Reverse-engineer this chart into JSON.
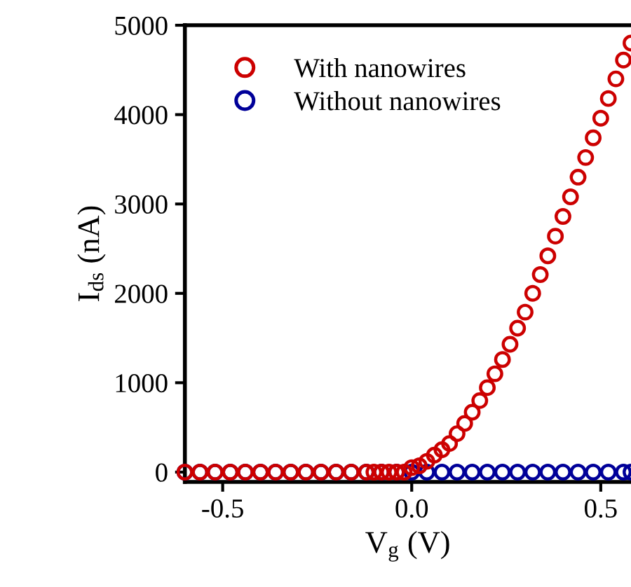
{
  "chart_data": {
    "type": "scatter",
    "xlabel": "V$_{g}$ (V)",
    "ylabel": "I$_{ds}$ (nA)",
    "xlim": [
      -0.6,
      0.58
    ],
    "ylim": [
      -110,
      5000
    ],
    "xticks": [
      {
        "value": -0.5,
        "label": "-0.5"
      },
      {
        "value": 0,
        "label": "0.0"
      },
      {
        "value": 0.5,
        "label": "0.5"
      }
    ],
    "yticks": [
      0,
      1000,
      2000,
      3000,
      4000,
      5000
    ],
    "marker": "circle",
    "legend": "top left",
    "grid": false,
    "series": [
      {
        "name": "With nanowires",
        "color": "#cc0000",
        "x": [
          -0.6,
          -0.56,
          -0.52,
          -0.48,
          -0.44,
          -0.4,
          -0.36,
          -0.32,
          -0.28,
          -0.24,
          -0.2,
          -0.16,
          -0.12,
          -0.1,
          -0.08,
          -0.06,
          -0.04,
          -0.02,
          0.0,
          0.02,
          0.04,
          0.06,
          0.08,
          0.1,
          0.12,
          0.14,
          0.16,
          0.18,
          0.2,
          0.22,
          0.24,
          0.26,
          0.28,
          0.3,
          0.32,
          0.34,
          0.36,
          0.38,
          0.4,
          0.42,
          0.44,
          0.46,
          0.48,
          0.5,
          0.52,
          0.54,
          0.56,
          0.58
        ],
        "values": [
          0,
          0,
          0,
          0,
          0,
          0,
          0,
          0,
          0,
          0,
          0,
          0,
          0,
          0,
          0,
          0,
          0,
          0,
          50,
          70,
          120,
          190,
          250,
          320,
          430,
          545,
          670,
          800,
          945,
          1100,
          1260,
          1430,
          1610,
          1790,
          2000,
          2210,
          2420,
          2640,
          2860,
          3080,
          3300,
          3520,
          3740,
          3960,
          4180,
          4400,
          4610,
          4800
        ]
      },
      {
        "name": "Without nanowires",
        "color": "#000099",
        "x": [
          -0.6,
          -0.56,
          -0.52,
          -0.48,
          -0.44,
          -0.4,
          -0.36,
          -0.32,
          -0.28,
          -0.24,
          -0.2,
          -0.16,
          -0.12,
          -0.08,
          -0.04,
          0.0,
          0.04,
          0.08,
          0.12,
          0.16,
          0.2,
          0.24,
          0.28,
          0.32,
          0.36,
          0.4,
          0.44,
          0.48,
          0.52,
          0.56,
          0.58
        ],
        "values": [
          0,
          0,
          0,
          0,
          0,
          0,
          0,
          0,
          0,
          0,
          0,
          0,
          0,
          0,
          0,
          0,
          0,
          0,
          0,
          0,
          0,
          0,
          0,
          0,
          0,
          0,
          0,
          0,
          0,
          0,
          0
        ]
      }
    ]
  }
}
